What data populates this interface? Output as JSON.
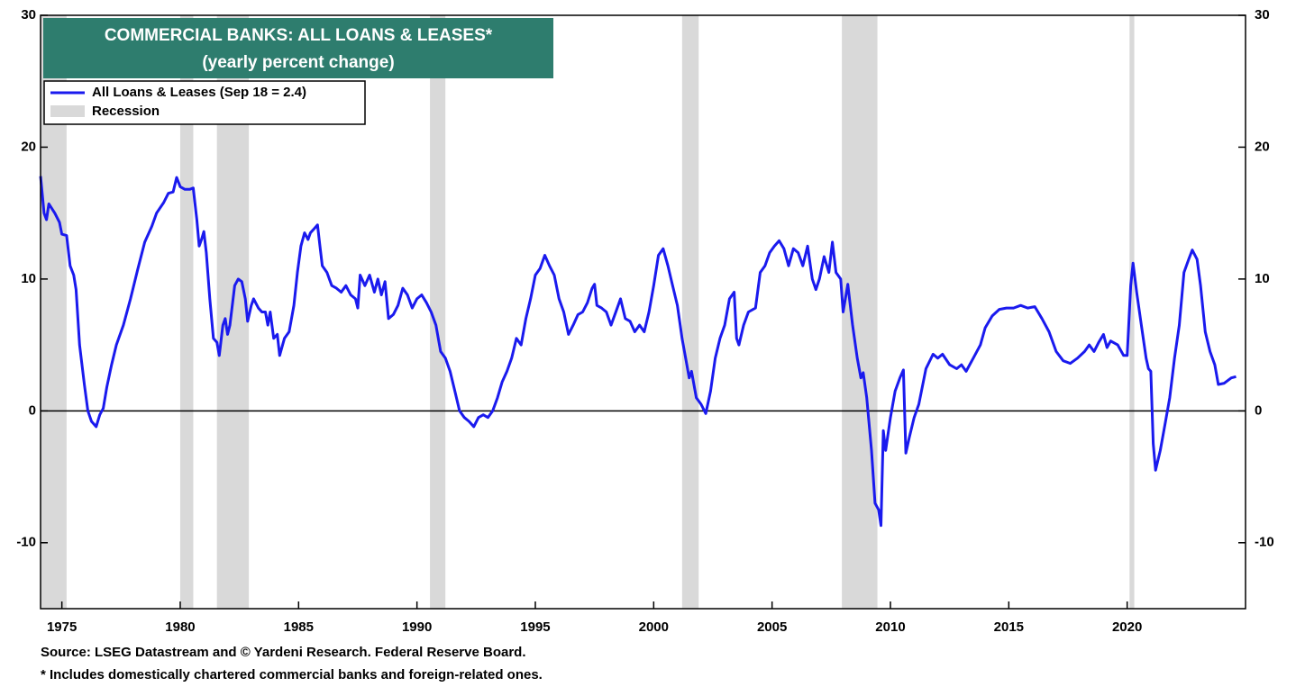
{
  "chart_data": {
    "type": "line",
    "title": "COMMERCIAL BANKS: ALL LOANS & LEASES*",
    "subtitle": "(yearly percent change)",
    "footnotes": [
      "Source: LSEG Datastream and © Yardeni Research. Federal Reserve Board.",
      "* Includes domestically chartered commercial banks and foreign-related ones."
    ],
    "xlim": [
      1974.1,
      2025.0
    ],
    "xticks": [
      1975,
      1980,
      1985,
      1990,
      1995,
      2000,
      2005,
      2010,
      2015,
      2020
    ],
    "ylim": [
      -15,
      30
    ],
    "yticks": [
      -10,
      0,
      10,
      20,
      30
    ],
    "y2lim": [
      -15,
      30
    ],
    "y2ticks": [
      -10,
      0,
      10,
      20,
      30
    ],
    "recession": {
      "name": "Recession",
      "color": "#d9d9d9",
      "spans": [
        [
          1974.1,
          1975.2
        ],
        [
          1980.0,
          1980.55
        ],
        [
          1981.55,
          1982.9
        ],
        [
          1990.55,
          1991.2
        ],
        [
          2001.2,
          2001.9
        ],
        [
          2007.95,
          2009.45
        ],
        [
          2020.1,
          2020.3
        ]
      ]
    },
    "x": [
      1974.1,
      1974.25,
      1974.35,
      1974.45,
      1974.7,
      1974.9,
      1975.0,
      1975.2,
      1975.35,
      1975.5,
      1975.6,
      1975.75,
      1975.95,
      1976.1,
      1976.25,
      1976.45,
      1976.6,
      1976.75,
      1976.9,
      1977.1,
      1977.3,
      1977.6,
      1977.9,
      1978.2,
      1978.5,
      1978.8,
      1979.0,
      1979.3,
      1979.5,
      1979.7,
      1979.85,
      1980.0,
      1980.2,
      1980.4,
      1980.55,
      1980.7,
      1980.8,
      1980.9,
      1981.0,
      1981.1,
      1981.25,
      1981.4,
      1981.55,
      1981.65,
      1981.8,
      1981.9,
      1982.0,
      1982.1,
      1982.3,
      1982.45,
      1982.6,
      1982.75,
      1982.85,
      1983.0,
      1983.1,
      1983.3,
      1983.45,
      1983.6,
      1983.7,
      1983.8,
      1983.95,
      1984.1,
      1984.2,
      1984.4,
      1984.6,
      1984.8,
      1984.95,
      1985.1,
      1985.25,
      1985.4,
      1985.5,
      1985.65,
      1985.8,
      1985.9,
      1986.0,
      1986.2,
      1986.4,
      1986.6,
      1986.8,
      1987.0,
      1987.2,
      1987.4,
      1987.5,
      1987.6,
      1987.8,
      1988.0,
      1988.2,
      1988.35,
      1988.5,
      1988.65,
      1988.8,
      1989.0,
      1989.2,
      1989.4,
      1989.6,
      1989.8,
      1990.0,
      1990.2,
      1990.4,
      1990.6,
      1990.8,
      1991.0,
      1991.2,
      1991.4,
      1991.6,
      1991.8,
      1992.0,
      1992.2,
      1992.4,
      1992.6,
      1992.8,
      1993.0,
      1993.2,
      1993.4,
      1993.6,
      1993.8,
      1994.0,
      1994.2,
      1994.4,
      1994.6,
      1994.8,
      1995.0,
      1995.2,
      1995.4,
      1995.6,
      1995.8,
      1996.0,
      1996.2,
      1996.4,
      1996.6,
      1996.8,
      1997.0,
      1997.2,
      1997.4,
      1997.5,
      1997.6,
      1997.8,
      1998.0,
      1998.2,
      1998.4,
      1998.6,
      1998.8,
      1999.0,
      1999.2,
      1999.4,
      1999.6,
      1999.8,
      2000.0,
      2000.2,
      2000.4,
      2000.6,
      2000.8,
      2001.0,
      2001.2,
      2001.4,
      2001.5,
      2001.6,
      2001.8,
      2002.0,
      2002.2,
      2002.4,
      2002.6,
      2002.8,
      2003.0,
      2003.2,
      2003.4,
      2003.5,
      2003.6,
      2003.8,
      2004.0,
      2004.3,
      2004.5,
      2004.7,
      2004.9,
      2005.1,
      2005.3,
      2005.5,
      2005.7,
      2005.9,
      2006.1,
      2006.3,
      2006.5,
      2006.7,
      2006.85,
      2007.0,
      2007.2,
      2007.4,
      2007.55,
      2007.7,
      2007.9,
      2008.0,
      2008.2,
      2008.4,
      2008.6,
      2008.75,
      2008.85,
      2009.0,
      2009.2,
      2009.35,
      2009.5,
      2009.6,
      2009.7,
      2009.8,
      2010.0,
      2010.2,
      2010.4,
      2010.55,
      2010.65,
      2010.8,
      2011.0,
      2011.2,
      2011.5,
      2011.8,
      2012.0,
      2012.2,
      2012.5,
      2012.8,
      2013.0,
      2013.2,
      2013.5,
      2013.8,
      2014.0,
      2014.3,
      2014.6,
      2014.9,
      2015.2,
      2015.5,
      2015.8,
      2016.1,
      2016.4,
      2016.7,
      2017.0,
      2017.3,
      2017.6,
      2017.9,
      2018.2,
      2018.4,
      2018.6,
      2018.8,
      2019.0,
      2019.15,
      2019.3,
      2019.6,
      2019.85,
      2020.0,
      2020.15,
      2020.25,
      2020.4,
      2020.6,
      2020.8,
      2020.9,
      2021.0,
      2021.1,
      2021.2,
      2021.4,
      2021.6,
      2021.8,
      2022.0,
      2022.2,
      2022.4,
      2022.6,
      2022.75,
      2022.95,
      2023.1,
      2023.3,
      2023.5,
      2023.7,
      2023.85,
      2024.1,
      2024.4,
      2024.6
    ],
    "series": [
      {
        "name": "All Loans & Leases (Sep 18 = 2.4)",
        "color": "#1a1aee",
        "values": [
          17.8,
          15.0,
          14.5,
          15.7,
          15.0,
          14.3,
          13.4,
          13.3,
          11.0,
          10.3,
          9.2,
          5.0,
          2.0,
          0.0,
          -0.8,
          -1.2,
          -0.3,
          0.2,
          1.8,
          3.5,
          5.0,
          6.5,
          8.5,
          10.7,
          12.8,
          14.0,
          15.0,
          15.8,
          16.5,
          16.6,
          17.7,
          17.0,
          16.8,
          16.8,
          16.9,
          14.5,
          12.5,
          13.0,
          13.6,
          12.0,
          8.5,
          5.5,
          5.2,
          4.2,
          6.5,
          7.0,
          5.8,
          6.5,
          9.5,
          10.0,
          9.8,
          8.5,
          6.8,
          8.0,
          8.5,
          7.8,
          7.5,
          7.5,
          6.5,
          7.5,
          5.5,
          5.8,
          4.2,
          5.5,
          6.0,
          8.0,
          10.5,
          12.5,
          13.5,
          13.0,
          13.5,
          13.8,
          14.1,
          12.5,
          11.0,
          10.5,
          9.5,
          9.3,
          9.0,
          9.5,
          8.8,
          8.5,
          7.8,
          10.3,
          9.5,
          10.3,
          9.0,
          10.0,
          8.8,
          9.8,
          7.0,
          7.3,
          8.0,
          9.3,
          8.8,
          7.8,
          8.5,
          8.8,
          8.2,
          7.5,
          6.5,
          4.5,
          4.0,
          3.0,
          1.5,
          0.0,
          -0.5,
          -0.8,
          -1.2,
          -0.5,
          -0.3,
          -0.5,
          0.0,
          1.0,
          2.2,
          3.0,
          4.0,
          5.5,
          5.0,
          7.0,
          8.5,
          10.3,
          10.8,
          11.8,
          11.0,
          10.3,
          8.5,
          7.5,
          5.8,
          6.5,
          7.3,
          7.5,
          8.2,
          9.3,
          9.6,
          8.0,
          7.8,
          7.5,
          6.5,
          7.5,
          8.5,
          7.0,
          6.8,
          6.0,
          6.5,
          6.0,
          7.5,
          9.5,
          11.8,
          12.3,
          11.0,
          9.5,
          8.0,
          5.5,
          3.5,
          2.5,
          3.0,
          1.0,
          0.5,
          -0.2,
          1.5,
          4.0,
          5.5,
          6.5,
          8.5,
          9.0,
          5.5,
          5.0,
          6.5,
          7.5,
          7.8,
          10.5,
          11.0,
          12.0,
          12.5,
          12.9,
          12.3,
          11.0,
          12.3,
          12.0,
          11.0,
          12.5,
          10.0,
          9.2,
          10.0,
          11.7,
          10.5,
          12.8,
          10.5,
          10.0,
          7.5,
          9.6,
          6.5,
          4.0,
          2.5,
          2.9,
          1.0,
          -3.0,
          -7.0,
          -7.5,
          -8.7,
          -1.5,
          -3.0,
          -0.5,
          1.5,
          2.5,
          3.1,
          -3.2,
          -2.0,
          -0.5,
          0.5,
          3.2,
          4.3,
          4.0,
          4.3,
          3.5,
          3.2,
          3.5,
          3.0,
          4.0,
          5.0,
          6.3,
          7.2,
          7.7,
          7.8,
          7.8,
          8.0,
          7.8,
          7.9,
          7.0,
          6.0,
          4.5,
          3.8,
          3.6,
          4.0,
          4.5,
          5.0,
          4.5,
          5.2,
          5.8,
          4.8,
          5.3,
          5.0,
          4.2,
          4.2,
          9.5,
          11.2,
          9.0,
          6.5,
          4.0,
          3.2,
          3.0,
          -2.5,
          -4.5,
          -3.0,
          -1.0,
          1.0,
          4.0,
          6.5,
          10.5,
          11.5,
          12.2,
          11.5,
          9.5,
          6.0,
          4.5,
          3.5,
          2.0,
          2.1,
          2.5,
          2.6
        ]
      }
    ]
  }
}
